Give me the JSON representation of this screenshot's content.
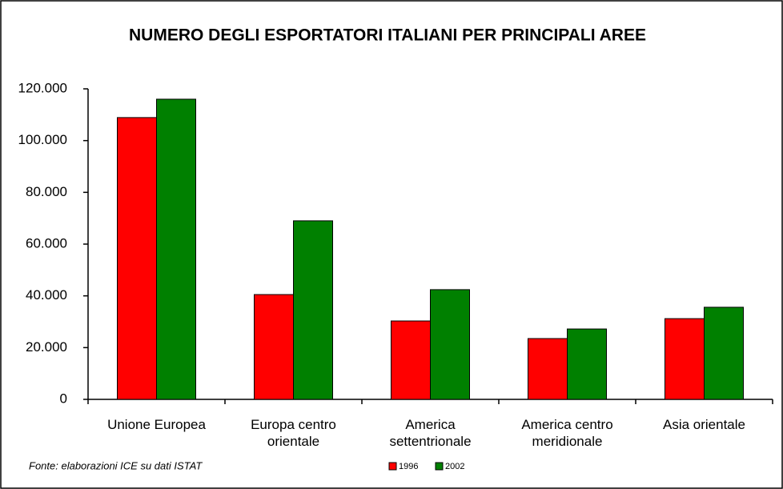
{
  "chart_data": {
    "type": "bar",
    "title": "NUMERO DEGLI ESPORTATORI ITALIANI PER PRINCIPALI AREE",
    "categories": [
      "Unione Europea",
      "Europa centro orientale",
      "America settentrionale",
      "America centro meridionale",
      "Asia orientale"
    ],
    "series": [
      {
        "name": "1996",
        "color": "#ff0000",
        "values": [
          108900,
          40500,
          30300,
          23500,
          31200
        ]
      },
      {
        "name": "2002",
        "color": "#008000",
        "values": [
          116000,
          69000,
          42400,
          27200,
          35600
        ]
      }
    ],
    "ylim": [
      0,
      120000
    ],
    "yticks": [
      0,
      {
        "value": 20000,
        "label": "20.000"
      },
      {
        "value": 40000,
        "label": "40.000"
      },
      {
        "value": 60000,
        "label": "60.000"
      },
      {
        "value": 80000,
        "label": "80.000"
      },
      {
        "value": 100000,
        "label": "100.000"
      },
      {
        "value": 120000,
        "label": "120.000"
      }
    ],
    "grid": false,
    "legend": "bottom",
    "source": "Fonte: elaborazioni ICE su dati ISTAT"
  }
}
